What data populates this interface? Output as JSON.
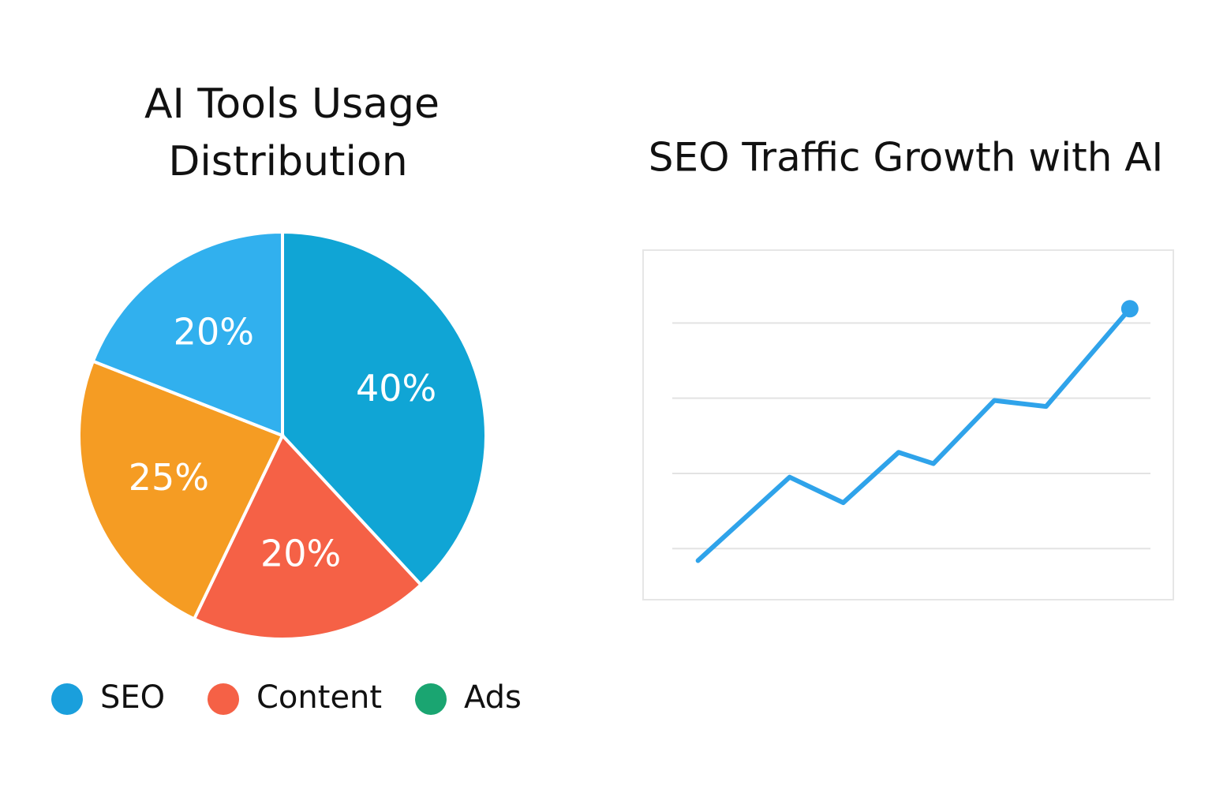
{
  "chart_data": [
    {
      "type": "pie",
      "title": [
        "AI Tools Usage",
        "Distribution"
      ],
      "values": [
        40,
        20,
        25,
        20
      ],
      "value_labels": [
        "40%",
        "20%",
        "25%",
        "20%"
      ],
      "colors": [
        "#10a5d5",
        "#f56146",
        "#f59c23",
        "#31b0ee"
      ],
      "legend": [
        {
          "name": "SEO",
          "color": "#1a9fdc"
        },
        {
          "name": "Content",
          "color": "#f56146"
        },
        {
          "name": "Ads",
          "color": "#1aa571"
        }
      ]
    },
    {
      "type": "line",
      "title": "SEO Traffic Growth with AI",
      "x": [
        0,
        2.0,
        3.17,
        4.38,
        5.14,
        6.47,
        7.6,
        9.43
      ],
      "series": [
        {
          "color": "#2fa3ea",
          "values": [
            0.84,
            1.95,
            1.61,
            2.28,
            2.13,
            2.97,
            2.89,
            4.19
          ]
        }
      ],
      "xlim": [
        -1.2,
        10.38
      ],
      "ylim": [
        0.32,
        4.97
      ],
      "ygrid": [
        1,
        2,
        3,
        4
      ],
      "end_marker": true
    }
  ]
}
